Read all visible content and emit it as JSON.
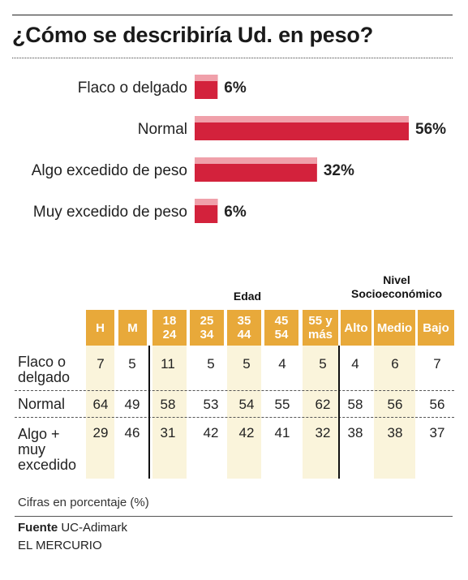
{
  "title": "¿Cómo se describiría Ud. en peso?",
  "chart_data": [
    {
      "type": "bar",
      "orientation": "horizontal",
      "categories": [
        "Flaco o delgado",
        "Normal",
        "Algo excedido de peso",
        "Muy excedido de peso"
      ],
      "values": [
        6,
        56,
        32,
        6
      ],
      "value_labels": [
        "6%",
        "56%",
        "32%",
        "6%"
      ],
      "xlim": [
        0,
        56
      ],
      "grid": false,
      "colors": {
        "bar": "#d3223c",
        "bar_highlight": "#f0a0aa"
      }
    },
    {
      "type": "table",
      "groups": [
        {
          "label": "",
          "span": 2
        },
        {
          "label": "Edad",
          "span": 5
        },
        {
          "label": "Nivel Socioeconómico",
          "span": 3
        }
      ],
      "columns": [
        "H",
        "M",
        "18 24",
        "25 34",
        "35 44",
        "45 54",
        "55 y más",
        "Alto",
        "Medio",
        "Bajo"
      ],
      "rows": [
        {
          "label": "Flaco o delgado",
          "values": [
            7,
            5,
            11,
            5,
            5,
            4,
            5,
            4,
            6,
            7
          ]
        },
        {
          "label": "Normal",
          "values": [
            64,
            49,
            58,
            53,
            54,
            55,
            62,
            58,
            56,
            56
          ]
        },
        {
          "label": "Algo + muy excedido",
          "values": [
            29,
            46,
            31,
            42,
            42,
            41,
            32,
            38,
            38,
            37
          ]
        }
      ],
      "colors": {
        "header": "#e8a93a",
        "highlight": "#faf4db"
      }
    }
  ],
  "table_text": {
    "group_edad": "Edad",
    "group_nivel": "Nivel Socioeconómico",
    "col_0": "H",
    "col_1": "M",
    "col_2a": "18",
    "col_2b": "24",
    "col_3a": "25",
    "col_3b": "34",
    "col_4a": "35",
    "col_4b": "44",
    "col_5a": "45",
    "col_5b": "54",
    "col_6a": "55 y",
    "col_6b": "más",
    "col_7": "Alto",
    "col_8": "Medio",
    "col_9": "Bajo",
    "row_0_a": "Flaco o",
    "row_0_b": "delgado",
    "row_1": "Normal",
    "row_2_a": "Algo +",
    "row_2_b": "muy",
    "row_2_c": "excedido"
  },
  "note": "Cifras en porcentaje (%)",
  "source_label": "Fuente",
  "source_value": "UC-Adimark",
  "publisher": "EL MERCURIO"
}
